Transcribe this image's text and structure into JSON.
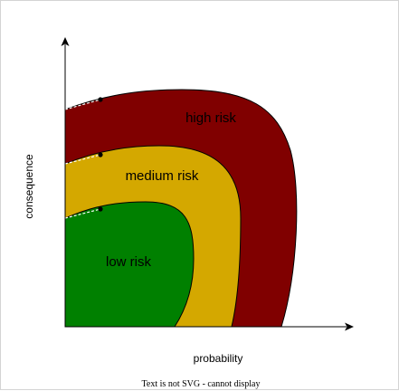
{
  "diagram": {
    "zones": [
      {
        "id": "high",
        "label": "high risk",
        "color": "#800000"
      },
      {
        "id": "medium",
        "label": "medium risk",
        "color": "#d4a800"
      },
      {
        "id": "low",
        "label": "low risk",
        "color": "#008000"
      }
    ],
    "x_axis_label": "probability",
    "y_axis_label": "consequence",
    "footer_note": "Text is not SVG - cannot display",
    "colors": {
      "axis": "#000000",
      "outline": "#000000",
      "background": "#ffffff"
    }
  }
}
